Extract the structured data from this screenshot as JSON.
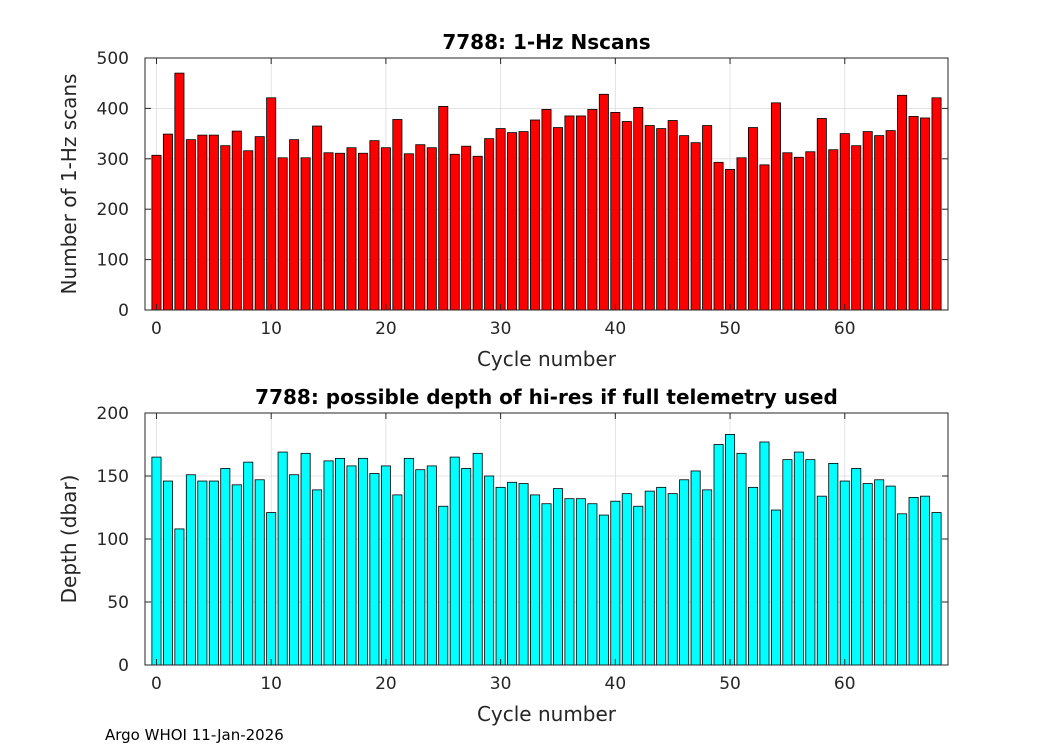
{
  "footer": "Argo WHOI 11-Jan-2026",
  "chart_data": [
    {
      "type": "bar",
      "title": "7788: 1-Hz Nscans",
      "xlabel": "Cycle number",
      "ylabel": "Number of 1-Hz scans",
      "color": "#ff0000",
      "xlim": [
        -1,
        69
      ],
      "ylim": [
        0,
        500
      ],
      "xticks": [
        0,
        10,
        20,
        30,
        40,
        50,
        60
      ],
      "yticks": [
        0,
        100,
        200,
        300,
        400,
        500
      ],
      "grid": true,
      "x_start": 0,
      "values": [
        307,
        349,
        470,
        338,
        347,
        347,
        326,
        355,
        316,
        344,
        421,
        302,
        338,
        302,
        365,
        312,
        311,
        322,
        311,
        336,
        322,
        378,
        310,
        328,
        322,
        404,
        309,
        325,
        305,
        340,
        360,
        352,
        354,
        377,
        398,
        362,
        385,
        385,
        398,
        428,
        392,
        374,
        402,
        366,
        360,
        376,
        346,
        332,
        366,
        293,
        279,
        302,
        362,
        288,
        411,
        312,
        303,
        314,
        380,
        318,
        350,
        326,
        354,
        346,
        356,
        426,
        384,
        381,
        421
      ]
    },
    {
      "type": "bar",
      "title": "7788: possible depth of hi-res if full telemetry used",
      "xlabel": "Cycle number",
      "ylabel": "Depth (dbar)",
      "color": "#00ffff",
      "xlim": [
        -1,
        69
      ],
      "ylim": [
        0,
        200
      ],
      "xticks": [
        0,
        10,
        20,
        30,
        40,
        50,
        60
      ],
      "yticks": [
        0,
        50,
        100,
        150,
        200
      ],
      "grid": true,
      "x_start": 0,
      "values": [
        165,
        146,
        108,
        151,
        146,
        146,
        156,
        143,
        161,
        147,
        121,
        169,
        151,
        168,
        139,
        162,
        164,
        158,
        164,
        152,
        158,
        135,
        164,
        155,
        158,
        126,
        165,
        156,
        168,
        150,
        141,
        145,
        144,
        135,
        128,
        140,
        132,
        132,
        128,
        119,
        130,
        136,
        126,
        138,
        141,
        136,
        147,
        154,
        139,
        175,
        183,
        168,
        141,
        177,
        123,
        163,
        169,
        163,
        134,
        160,
        146,
        156,
        144,
        147,
        142,
        120,
        133,
        134,
        121
      ]
    }
  ]
}
